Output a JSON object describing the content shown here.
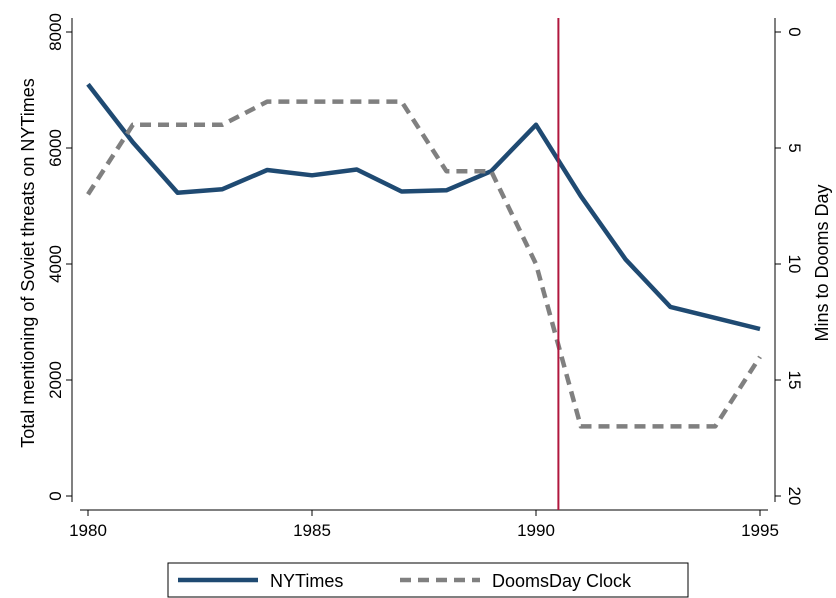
{
  "chart_data": {
    "type": "line",
    "x": [
      1980,
      1981,
      1982,
      1983,
      1984,
      1985,
      1986,
      1987,
      1988,
      1989,
      1990,
      1991,
      1992,
      1993,
      1994,
      1995
    ],
    "xlim": [
      1980,
      1995
    ],
    "xticks": [
      "1980",
      "1985",
      "1990",
      "1995"
    ],
    "ylabel": "Total mentioning of Soviet threats on NYTimes",
    "ylim": [
      0,
      8000
    ],
    "yticks": [
      "0",
      "2000",
      "4000",
      "6000",
      "8000"
    ],
    "y2label": "Mins to Dooms Day",
    "y2lim": [
      0,
      20
    ],
    "y2_reversed": true,
    "y2ticks": [
      "0",
      "5",
      "10",
      "15",
      "20"
    ],
    "series": [
      {
        "name": "NYTimes",
        "axis": "left",
        "color": "#1f4a72",
        "style": "solid",
        "values": [
          7100,
          6100,
          5230,
          5290,
          5620,
          5530,
          5630,
          5250,
          5270,
          5600,
          6400,
          5170,
          4080,
          3260,
          3070,
          2880
        ]
      },
      {
        "name": "DoomsDay Clock",
        "axis": "right",
        "color": "#808080",
        "style": "dashed",
        "values": [
          7,
          4,
          4,
          4,
          3,
          3,
          3,
          3,
          6,
          6,
          10,
          17,
          17,
          17,
          17,
          14
        ]
      }
    ],
    "reference_line": {
      "x": 1990.5,
      "color": "#b0173e"
    },
    "grid": false,
    "legend": {
      "position": "bottom",
      "entries": [
        "NYTimes",
        "DoomsDay Clock"
      ]
    }
  }
}
